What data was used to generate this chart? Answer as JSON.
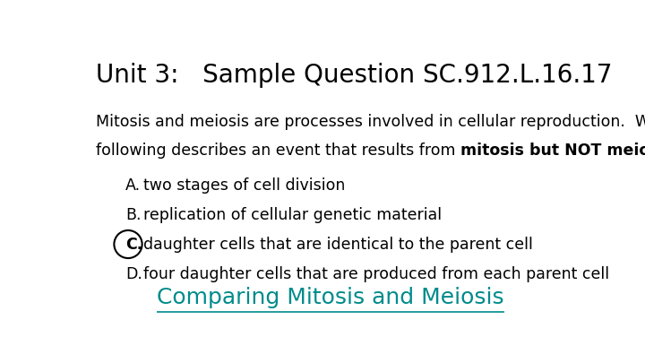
{
  "title": "Unit 3:   Sample Question SC.912.L.16.17",
  "title_fontsize": 20,
  "title_color": "#000000",
  "background_color": "#ffffff",
  "line1": "Mitosis and meiosis are processes involved in cellular reproduction.  Which of the",
  "line2_regular": "following describes an event that results from ",
  "line2_bold": "mitosis but NOT meiosis",
  "line2_end": "?",
  "body_fontsize": 12.5,
  "options": [
    {
      "label": "A.",
      "text": "two stages of cell division",
      "circled": false
    },
    {
      "label": "B.",
      "text": "replication of cellular genetic material",
      "circled": false
    },
    {
      "label": "C.",
      "text": "daughter cells that are identical to the parent cell",
      "circled": true
    },
    {
      "label": "D.",
      "text": "four daughter cells that are produced from each parent cell",
      "circled": false
    }
  ],
  "option_fontsize": 12.5,
  "link_text": "Comparing Mitosis and Meiosis",
  "link_color": "#008B8B",
  "link_fontsize": 18,
  "circle_color": "#000000"
}
